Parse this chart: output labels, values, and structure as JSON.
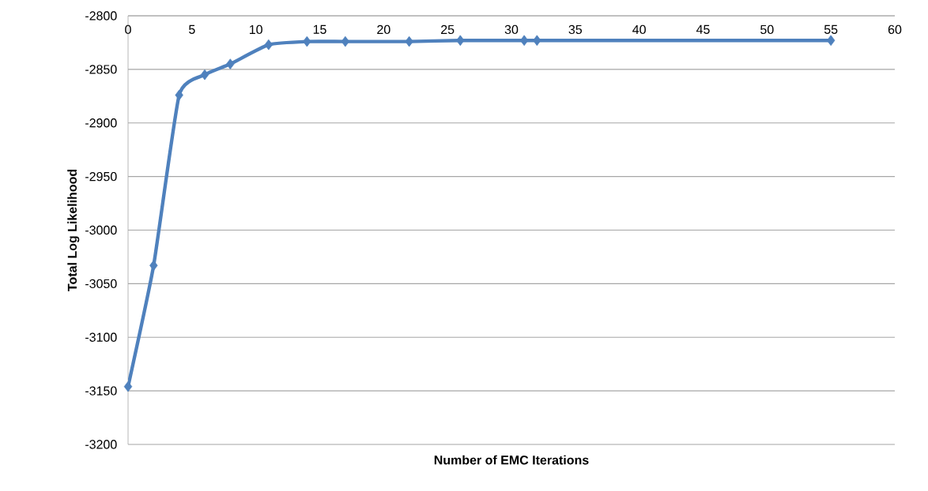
{
  "chart_data": {
    "type": "line",
    "xlabel": "Number of EMC Iterations",
    "ylabel": "Total Log Likelihood",
    "x": [
      0,
      2,
      4,
      6,
      8,
      11,
      14,
      17,
      22,
      26,
      31,
      32,
      55
    ],
    "series": [
      {
        "color": "#4f81bd",
        "values": [
          -3146,
          -3033,
          -2874,
          -2855,
          -2845,
          -2827,
          -2824,
          -2824,
          -2824,
          -2823,
          -2823,
          -2823,
          -2823
        ]
      }
    ],
    "xlim": [
      0,
      60
    ],
    "xticks": [
      0,
      5,
      10,
      15,
      20,
      25,
      30,
      35,
      40,
      45,
      50,
      55,
      60
    ],
    "ylim": [
      -3200,
      -2800
    ],
    "yticks": [
      -3200,
      -3150,
      -3100,
      -3050,
      -3000,
      -2950,
      -2900,
      -2850,
      -2800
    ],
    "grid": "y",
    "marker": "diamond",
    "line_style": "solid"
  }
}
